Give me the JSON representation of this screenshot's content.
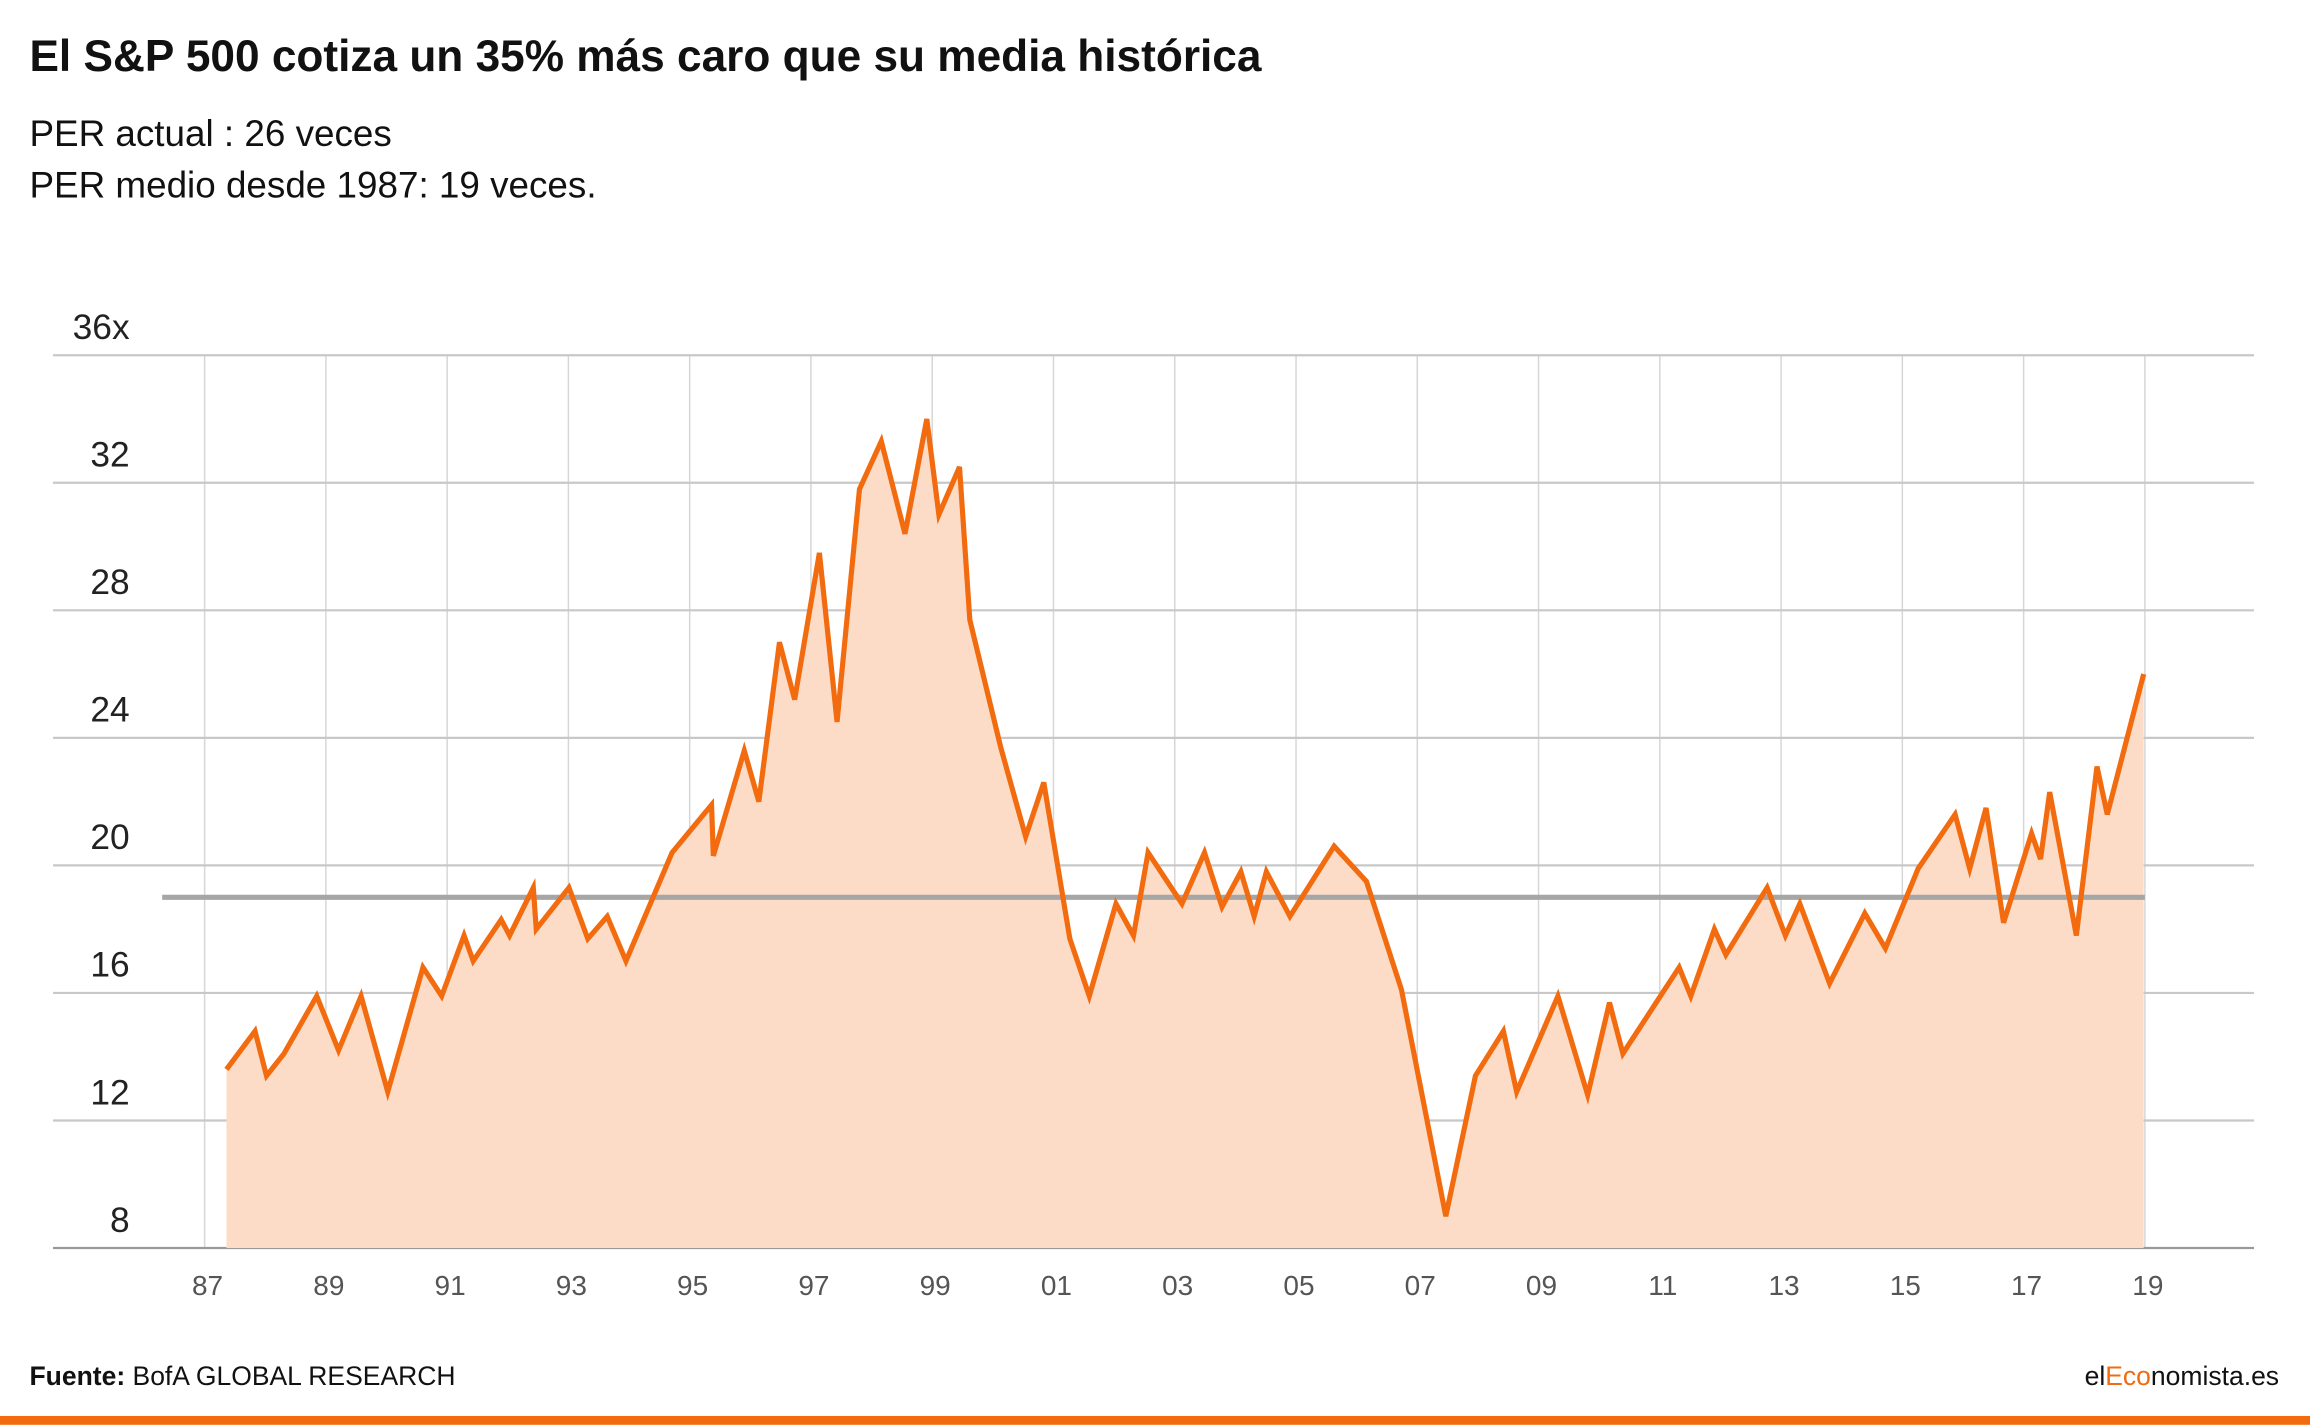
{
  "chart_data": {
    "type": "line",
    "title": "El S&P 500 cotiza un 35% más caro que su media histórica",
    "subtitle": [
      "PER actual : 26 veces",
      "PER medio desde 1987:  19 veces."
    ],
    "source_label": "Fuente:",
    "source": "BofA GLOBAL RESEARCH",
    "brand": [
      "el",
      "Eco",
      "nomista.es"
    ],
    "xlim": [
      1984.5,
      2020.8
    ],
    "xticks": [
      {
        "value": 1987,
        "label": "87"
      },
      {
        "value": 1989,
        "label": "89"
      },
      {
        "value": 1991,
        "label": "91"
      },
      {
        "value": 1993,
        "label": "93"
      },
      {
        "value": 1995,
        "label": "95"
      },
      {
        "value": 1997,
        "label": "97"
      },
      {
        "value": 1999,
        "label": "99"
      },
      {
        "value": 2001,
        "label": "01"
      },
      {
        "value": 2003,
        "label": "03"
      },
      {
        "value": 2005,
        "label": "05"
      },
      {
        "value": 2007,
        "label": "07"
      },
      {
        "value": 2009,
        "label": "09"
      },
      {
        "value": 2011,
        "label": "11"
      },
      {
        "value": 2013,
        "label": "13"
      },
      {
        "value": 2015,
        "label": "15"
      },
      {
        "value": 2017,
        "label": "17"
      },
      {
        "value": 2019,
        "label": "19"
      }
    ],
    "ylim": [
      8,
      36
    ],
    "yticks": [
      8,
      12,
      16,
      20,
      24,
      28,
      32,
      {
        "value": 36,
        "label": "36x"
      }
    ],
    "grid": true,
    "reference_line": {
      "value": 19,
      "color": "#a6a6a6",
      "x": [
        1986.3,
        2019
      ]
    },
    "series": [
      {
        "color": "#f26b0f",
        "fill": "#fcdcc7",
        "x": [
          1987.36,
          1987.83,
          1988.02,
          1988.31,
          1988.85,
          1989.21,
          1989.58,
          1990.02,
          1990.6,
          1990.91,
          1991.28,
          1991.43,
          1991.89,
          1992.03,
          1992.42,
          1992.47,
          1993.01,
          1993.32,
          1993.64,
          1993.95,
          1994.71,
          1995.36,
          1995.39,
          1995.9,
          1996.14,
          1996.48,
          1996.73,
          1997.14,
          1997.43,
          1997.8,
          1998.16,
          1998.55,
          1998.91,
          1999.11,
          1999.45,
          1999.62,
          2000.13,
          2000.54,
          2000.84,
          2001.27,
          2001.59,
          2002.03,
          2002.32,
          2002.56,
          2003.12,
          2003.49,
          2003.78,
          2004.09,
          2004.31,
          2004.51,
          2004.9,
          2005.63,
          2006.16,
          2006.74,
          2007.47,
          2007.96,
          2008.42,
          2008.64,
          2009.32,
          2009.81,
          2010.17,
          2010.39,
          2011.32,
          2011.51,
          2011.9,
          2012.09,
          2012.77,
          2013.07,
          2013.31,
          2013.8,
          2014.38,
          2014.72,
          2015.26,
          2015.87,
          2016.11,
          2016.38,
          2016.67,
          2017.13,
          2017.28,
          2017.43,
          2017.87,
          2018.21,
          2018.38,
          2018.98
        ],
        "values": [
          13.6,
          14.8,
          13.4,
          14.1,
          15.9,
          14.2,
          15.9,
          12.9,
          16.8,
          15.9,
          17.8,
          17.0,
          18.3,
          17.8,
          19.3,
          18.0,
          19.3,
          17.7,
          18.4,
          17.0,
          20.4,
          21.9,
          20.3,
          23.6,
          22.0,
          27.0,
          25.2,
          29.8,
          24.5,
          31.8,
          33.3,
          30.4,
          34.0,
          31.0,
          32.5,
          27.7,
          23.7,
          20.9,
          22.6,
          17.7,
          15.9,
          18.8,
          17.8,
          20.4,
          18.8,
          20.4,
          18.7,
          19.8,
          18.4,
          19.8,
          18.4,
          20.6,
          19.5,
          16.1,
          9.0,
          13.4,
          14.8,
          12.9,
          15.9,
          12.8,
          15.7,
          14.1,
          16.8,
          15.9,
          18.0,
          17.2,
          19.3,
          17.8,
          18.8,
          16.3,
          18.5,
          17.4,
          19.9,
          21.6,
          19.9,
          21.8,
          18.2,
          21.0,
          20.2,
          22.3,
          17.8,
          23.1,
          21.6,
          26
        ]
      }
    ]
  }
}
